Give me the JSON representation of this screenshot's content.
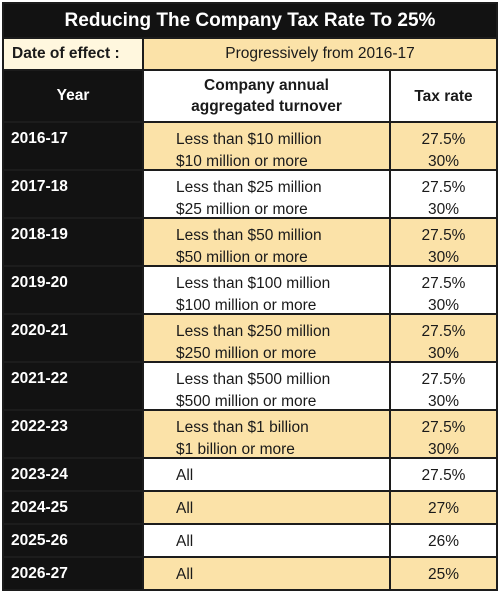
{
  "title": "Reducing The Company Tax Rate To 25%",
  "date_of_effect": {
    "label": "Date of effect :",
    "value": "Progressively from 2016-17"
  },
  "headers": {
    "year": "Year",
    "turnover": "Company annual aggregated turnover",
    "rate": "Tax rate"
  },
  "rows": [
    {
      "year": "2016-17",
      "turnover": [
        "Less than $10 million",
        "$10 million or more"
      ],
      "rates": [
        "27.5%",
        "30%"
      ]
    },
    {
      "year": "2017-18",
      "turnover": [
        "Less than $25 million",
        "$25 million or more"
      ],
      "rates": [
        "27.5%",
        "30%"
      ]
    },
    {
      "year": "2018-19",
      "turnover": [
        "Less than $50 million",
        "$50 million or more"
      ],
      "rates": [
        "27.5%",
        "30%"
      ]
    },
    {
      "year": "2019-20",
      "turnover": [
        "Less than $100 million",
        "$100 million or more"
      ],
      "rates": [
        "27.5%",
        "30%"
      ]
    },
    {
      "year": "2020-21",
      "turnover": [
        "Less than $250 million",
        "$250 million or more"
      ],
      "rates": [
        "27.5%",
        "30%"
      ]
    },
    {
      "year": "2021-22",
      "turnover": [
        "Less than $500 million",
        "$500 million or more"
      ],
      "rates": [
        "27.5%",
        "30%"
      ]
    },
    {
      "year": "2022-23",
      "turnover": [
        "Less than $1 billion",
        "$1 billion or more"
      ],
      "rates": [
        "27.5%",
        "30%"
      ]
    },
    {
      "year": "2023-24",
      "turnover": [
        "All"
      ],
      "rates": [
        "27.5%"
      ]
    },
    {
      "year": "2024-25",
      "turnover": [
        "All"
      ],
      "rates": [
        "27%"
      ]
    },
    {
      "year": "2025-26",
      "turnover": [
        "All"
      ],
      "rates": [
        "26%"
      ]
    },
    {
      "year": "2026-27",
      "turnover": [
        "All"
      ],
      "rates": [
        "25%"
      ]
    }
  ]
}
